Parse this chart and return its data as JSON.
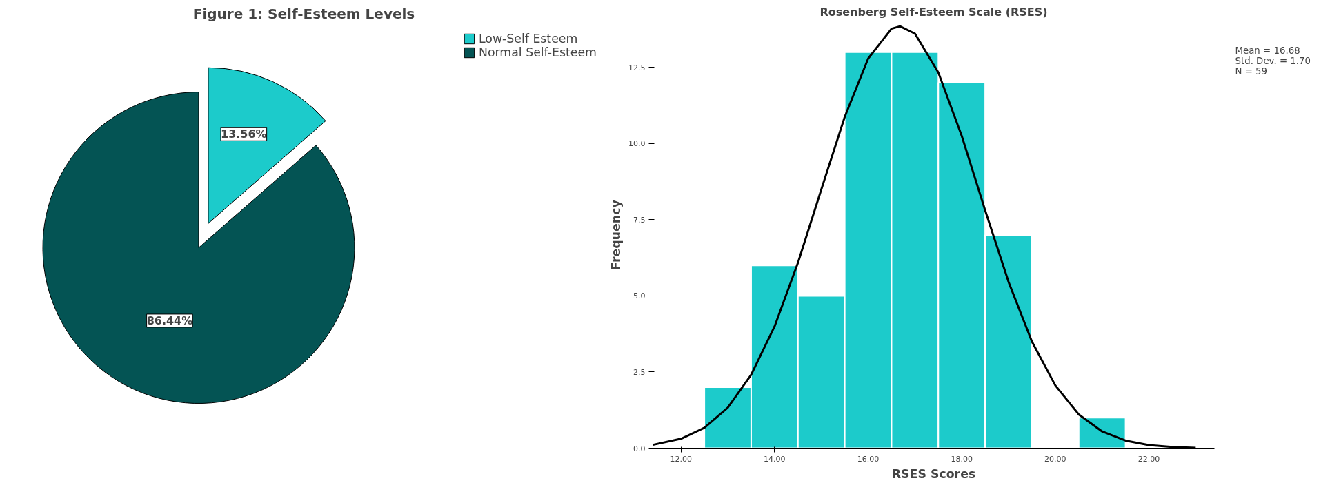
{
  "chart_data": [
    {
      "type": "pie",
      "title": "Figure 1: Self-Esteem Levels",
      "categories": [
        "Low-Self Esteem",
        "Normal Self-Esteem"
      ],
      "values": [
        13.56,
        86.44
      ],
      "colors": [
        "#1ccbcb",
        "#045454"
      ],
      "value_labels": [
        "13.56%",
        "86.44%"
      ],
      "legend": "top right"
    },
    {
      "type": "histogram",
      "title": "Rosenberg Self-Esteem Scale (RSES)",
      "xlabel": "RSES Scores",
      "ylabel": "Frequency",
      "bins": [
        12.5,
        13.5,
        14.5,
        15.5,
        16.5,
        17.5,
        18.5,
        19.5,
        20.5,
        21.5
      ],
      "values": [
        2,
        6,
        5,
        13,
        13,
        12,
        7,
        0,
        1
      ],
      "color": "#1ccbcb",
      "series": [
        {
          "type": "line",
          "color": "#000000",
          "x": [
            11.4,
            12,
            12.5,
            13,
            13.5,
            14,
            14.5,
            15,
            15.5,
            16,
            16.5,
            16.68,
            17,
            17.5,
            18,
            18.5,
            19,
            19.5,
            20,
            20.5,
            21,
            21.5,
            22,
            22.5,
            23
          ],
          "values": [
            0.11,
            0.31,
            0.67,
            1.33,
            2.41,
            4.0,
            6.09,
            8.5,
            10.88,
            12.79,
            13.77,
            13.85,
            13.61,
            12.33,
            10.25,
            7.81,
            5.46,
            3.5,
            2.06,
            1.11,
            0.55,
            0.25,
            0.1,
            0.04,
            0.01
          ]
        }
      ],
      "xlim": [
        11.4,
        23.4
      ],
      "ylim": [
        0,
        14
      ],
      "xticks": [
        {
          "value": 12,
          "label": "12.00"
        },
        {
          "value": 14,
          "label": "14.00"
        },
        {
          "value": 16,
          "label": "16.00"
        },
        {
          "value": 18,
          "label": "18.00"
        },
        {
          "value": 20,
          "label": "20.00"
        },
        {
          "value": 22,
          "label": "22.00"
        }
      ],
      "yticks": [
        {
          "value": 0,
          "label": "0.0"
        },
        {
          "value": 2.5,
          "label": "2.5"
        },
        {
          "value": 5,
          "label": "5.0"
        },
        {
          "value": 7.5,
          "label": "7.5"
        },
        {
          "value": 10,
          "label": "10.0"
        },
        {
          "value": 12.5,
          "label": "12.5"
        }
      ],
      "annotations": [
        "Mean = 16.68",
        "Std. Dev. = 1.70",
        "N = 59"
      ],
      "grid": false
    }
  ]
}
